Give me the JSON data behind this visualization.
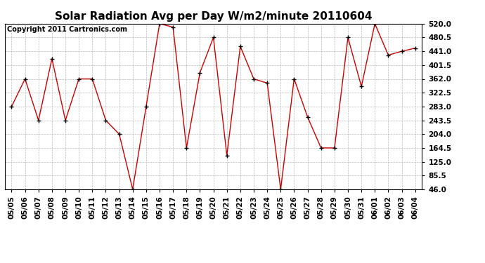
{
  "title": "Solar Radiation Avg per Day W/m2/minute 20110604",
  "copyright": "Copyright 2011 Cartronics.com",
  "x_labels": [
    "05/05",
    "05/06",
    "05/07",
    "05/08",
    "05/09",
    "05/10",
    "05/11",
    "05/12",
    "05/13",
    "05/14",
    "05/15",
    "05/16",
    "05/17",
    "05/18",
    "05/19",
    "05/20",
    "05/21",
    "05/22",
    "05/23",
    "05/24",
    "05/25",
    "05/26",
    "05/27",
    "05/28",
    "05/29",
    "05/30",
    "05/31",
    "06/01",
    "06/02",
    "06/03",
    "06/04"
  ],
  "y_values": [
    283.0,
    362.0,
    243.5,
    420.0,
    243.5,
    362.0,
    362.0,
    243.5,
    204.0,
    46.0,
    283.0,
    520.0,
    510.0,
    164.5,
    380.0,
    480.5,
    143.0,
    455.0,
    362.0,
    350.0,
    46.0,
    362.0,
    253.0,
    164.5,
    164.5,
    480.5,
    340.0,
    520.0,
    430.0,
    441.0,
    450.0
  ],
  "y_ticks": [
    46.0,
    85.5,
    125.0,
    164.5,
    204.0,
    243.5,
    283.0,
    322.5,
    362.0,
    401.5,
    441.0,
    480.5,
    520.0
  ],
  "y_min": 46.0,
  "y_max": 520.0,
  "line_color": "#cc0000",
  "marker": "+",
  "marker_color": "#000000",
  "bg_color": "#ffffff",
  "grid_color": "#aaaaaa",
  "title_fontsize": 11,
  "tick_fontsize": 7.5,
  "copyright_fontsize": 7
}
